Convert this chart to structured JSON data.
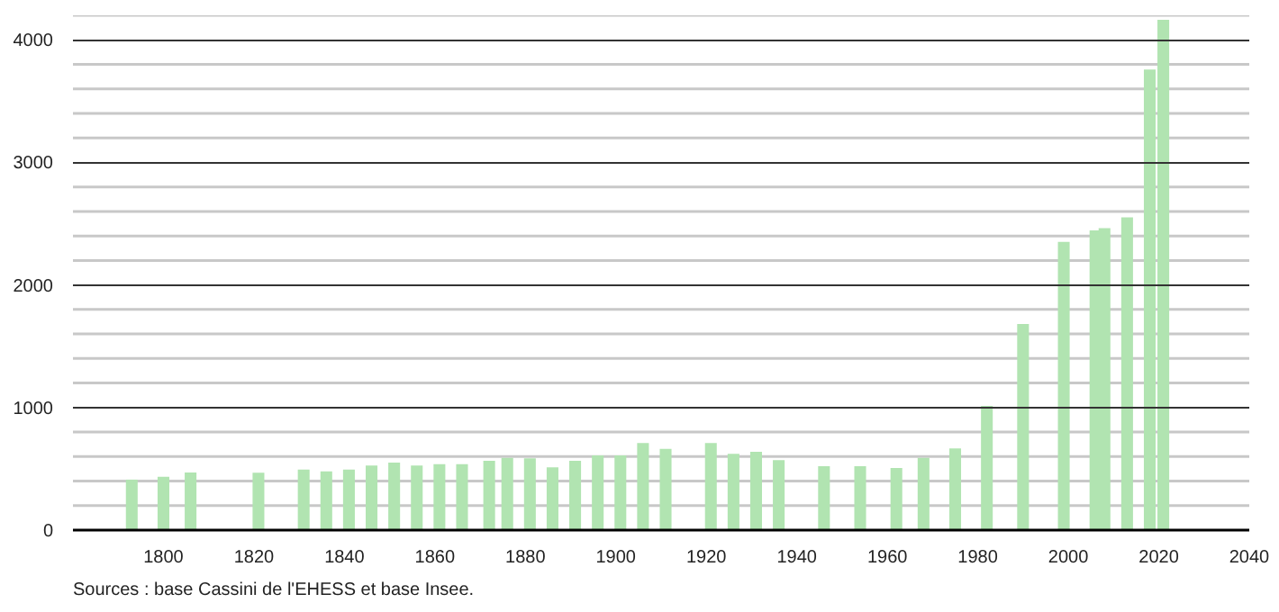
{
  "chart_data": {
    "type": "bar",
    "x": [
      1793,
      1800,
      1806,
      1821,
      1831,
      1836,
      1841,
      1846,
      1851,
      1856,
      1861,
      1866,
      1872,
      1876,
      1881,
      1886,
      1891,
      1896,
      1901,
      1906,
      1911,
      1921,
      1926,
      1931,
      1936,
      1946,
      1954,
      1962,
      1968,
      1975,
      1982,
      1990,
      1999,
      2006,
      2008,
      2013,
      2018,
      2021
    ],
    "values": [
      412,
      435,
      470,
      468,
      493,
      480,
      493,
      527,
      551,
      527,
      537,
      537,
      565,
      590,
      585,
      512,
      565,
      609,
      609,
      710,
      662,
      710,
      623,
      638,
      570,
      522,
      522,
      507,
      590,
      667,
      1014,
      1681,
      2352,
      2446,
      2464,
      2551,
      3758,
      4164
    ],
    "color": "#b1e4b1",
    "xlim": [
      1780,
      2040
    ],
    "xticks": [
      1800,
      1820,
      1840,
      1860,
      1880,
      1900,
      1920,
      1940,
      1960,
      1980,
      2000,
      2020,
      2040
    ],
    "ylim": [
      0,
      4200
    ],
    "yticks": [
      0,
      {
        "value": 200,
        "label": null
      },
      {
        "value": 400,
        "label": null
      },
      {
        "value": 600,
        "label": null
      },
      {
        "value": 800,
        "label": null
      },
      1000,
      {
        "value": 1200,
        "label": null
      },
      {
        "value": 1400,
        "label": null
      },
      {
        "value": 1600,
        "label": null
      },
      {
        "value": 1800,
        "label": null
      },
      2000,
      {
        "value": 2200,
        "label": null
      },
      {
        "value": 2400,
        "label": null
      },
      {
        "value": 2600,
        "label": null
      },
      {
        "value": 2800,
        "label": null
      },
      3000,
      {
        "value": 3200,
        "label": null
      },
      {
        "value": 3400,
        "label": null
      },
      {
        "value": 3600,
        "label": null
      },
      {
        "value": 3800,
        "label": null
      },
      4000,
      {
        "value": 4200,
        "label": null
      }
    ],
    "grid": "y",
    "annotations": [
      "Sources : base Cassini de l'EHESS et base Insee."
    ]
  }
}
